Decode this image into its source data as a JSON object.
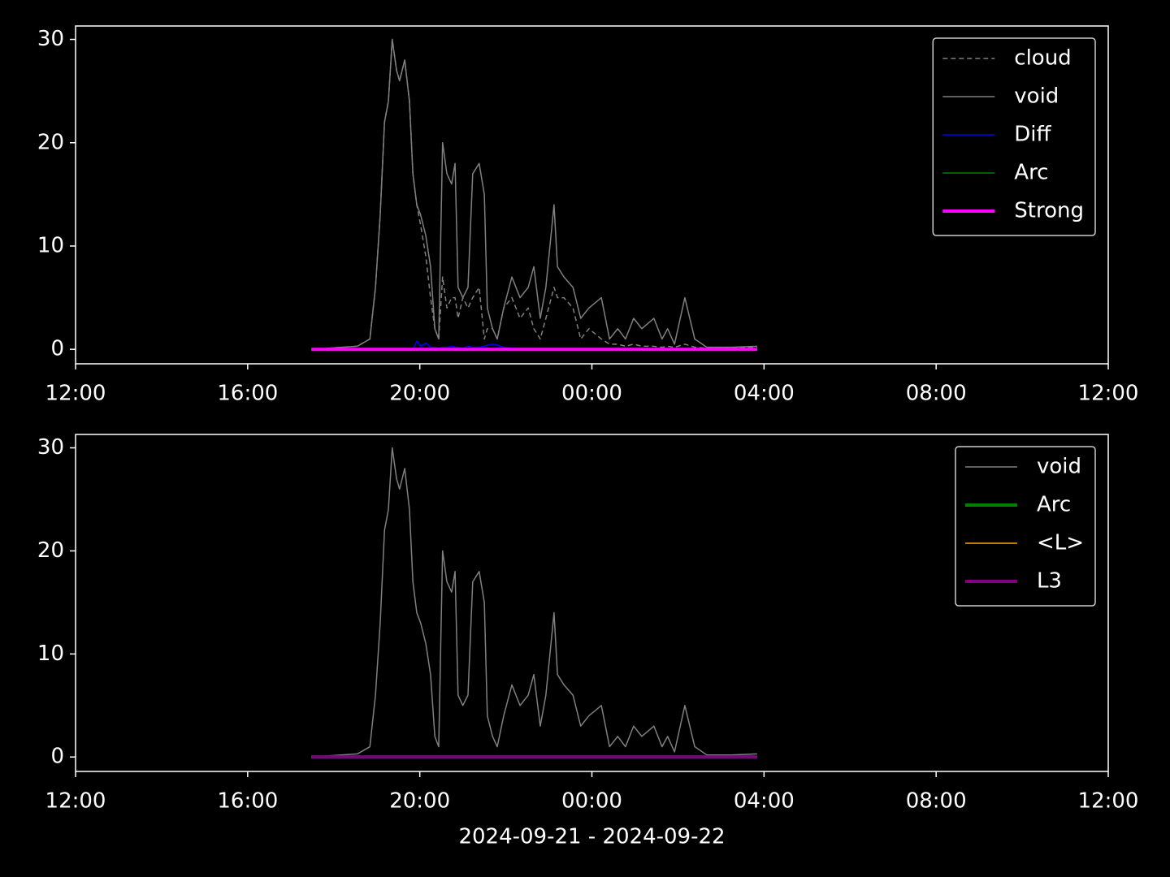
{
  "chart_data": [
    {
      "type": "line",
      "x": [
        17.48,
        18.55,
        18.84,
        18.97,
        19.08,
        19.18,
        19.27,
        19.36,
        19.46,
        19.53,
        19.65,
        19.76,
        19.84,
        19.93,
        20.02,
        20.14,
        20.25,
        20.35,
        20.44,
        20.53,
        20.63,
        20.74,
        20.82,
        20.89,
        21.0,
        21.12,
        21.23,
        21.38,
        21.5,
        21.57,
        21.69,
        21.8,
        21.95,
        22.14,
        22.33,
        22.52,
        22.65,
        22.8,
        22.93,
        23.12,
        23.2,
        23.35,
        23.56,
        23.74,
        23.93,
        24.22,
        24.41,
        24.6,
        24.78,
        24.97,
        25.16,
        25.44,
        25.63,
        25.76,
        25.92,
        26.16,
        26.39,
        26.67,
        27.24,
        27.84
      ],
      "series": [
        {
          "name": "cloud",
          "color": "#808080",
          "linestyle": "dashed",
          "linewidth": 1.5,
          "values": [
            0,
            0.3,
            1,
            6,
            13,
            22,
            24,
            30,
            27,
            26,
            28,
            24,
            17,
            14,
            12,
            9,
            5,
            2,
            1,
            7,
            4,
            5,
            5,
            3,
            5,
            4,
            5,
            6,
            1,
            2,
            2,
            1,
            4,
            5,
            3,
            4,
            2,
            1,
            3,
            6,
            5,
            5,
            4,
            1,
            2,
            1,
            0.5,
            0.5,
            0.3,
            0.5,
            0.3,
            0.3,
            0.2,
            0.3,
            0.2,
            0.5,
            0.2,
            0.1,
            0.1,
            0.2
          ]
        },
        {
          "name": "void",
          "color": "#808080",
          "linestyle": "solid",
          "linewidth": 1.5,
          "values": [
            0,
            0.3,
            1,
            6,
            13,
            22,
            24,
            30,
            27,
            26,
            28,
            24,
            17,
            14,
            13,
            11,
            8,
            2,
            1,
            20,
            17,
            16,
            18,
            6,
            5,
            6,
            17,
            18,
            15,
            4,
            2,
            1,
            4,
            7,
            5,
            6,
            8,
            3,
            6,
            14,
            8,
            7,
            6,
            3,
            4,
            5,
            1,
            2,
            1,
            3,
            2,
            3,
            1,
            2,
            0.5,
            5,
            1,
            0.2,
            0.2,
            0.3
          ]
        },
        {
          "name": "Diff",
          "color": "#0000ff",
          "linestyle": "solid",
          "linewidth": 1.5,
          "values": [
            0,
            0,
            0,
            0,
            0,
            0,
            0,
            0,
            0,
            0,
            0,
            0,
            0,
            0.8,
            0.3,
            0.6,
            0.2,
            0.2,
            0.1,
            0.2,
            0.2,
            0.3,
            0.2,
            0.2,
            0.1,
            0.3,
            0.2,
            0.2,
            0.3,
            0.4,
            0.5,
            0.4,
            0.2,
            0.1,
            0,
            0,
            0,
            0,
            0,
            0,
            0,
            0,
            0,
            0,
            0,
            0,
            0,
            0,
            0,
            0,
            0,
            0,
            0,
            0,
            0,
            0,
            0,
            0,
            0,
            0
          ]
        },
        {
          "name": "Arc",
          "color": "#008000",
          "linestyle": "solid",
          "linewidth": 1.5,
          "values": [
            0,
            0,
            0,
            0,
            0,
            0,
            0,
            0,
            0,
            0,
            0,
            0,
            0,
            0,
            0,
            0,
            0,
            0,
            0,
            0,
            0,
            0,
            0,
            0,
            0,
            0,
            0,
            0,
            0,
            0,
            0,
            0,
            0,
            0,
            0,
            0,
            0,
            0,
            0,
            0,
            0,
            0,
            0,
            0,
            0,
            0,
            0,
            0,
            0,
            0,
            0,
            0,
            0,
            0,
            0,
            0,
            0,
            0,
            0,
            0
          ]
        },
        {
          "name": "Strong",
          "color": "#ff00ff",
          "linestyle": "solid",
          "linewidth": 4,
          "values": [
            0,
            0,
            0,
            0,
            0,
            0,
            0,
            0,
            0,
            0,
            0,
            0,
            0,
            0,
            0,
            0,
            0,
            0,
            0,
            0,
            0,
            0,
            0,
            0,
            0,
            0,
            0,
            0,
            0,
            0,
            0,
            0,
            0,
            0,
            0,
            0,
            0,
            0,
            0,
            0,
            0,
            0,
            0,
            0,
            0,
            0,
            0,
            0,
            0,
            0,
            0,
            0,
            0,
            0,
            0,
            0,
            0,
            0,
            0,
            0
          ]
        }
      ],
      "xlim": [
        12,
        36
      ],
      "xticks": [
        {
          "value": 12,
          "label": "12:00"
        },
        {
          "value": 16,
          "label": "16:00"
        },
        {
          "value": 20,
          "label": "20:00"
        },
        {
          "value": 24,
          "label": "00:00"
        },
        {
          "value": 28,
          "label": "04:00"
        },
        {
          "value": 32,
          "label": "08:00"
        },
        {
          "value": 36,
          "label": "12:00"
        }
      ],
      "ylim": [
        -1.4,
        31.3
      ],
      "yticks": [
        0,
        10,
        20,
        30
      ],
      "legend": "upper right"
    },
    {
      "type": "line",
      "x": [
        17.48,
        18.55,
        18.84,
        18.97,
        19.08,
        19.18,
        19.27,
        19.36,
        19.46,
        19.53,
        19.65,
        19.76,
        19.84,
        19.93,
        20.02,
        20.14,
        20.25,
        20.35,
        20.44,
        20.53,
        20.63,
        20.74,
        20.82,
        20.89,
        21.0,
        21.12,
        21.23,
        21.38,
        21.5,
        21.57,
        21.69,
        21.8,
        21.95,
        22.14,
        22.33,
        22.52,
        22.65,
        22.8,
        22.93,
        23.12,
        23.2,
        23.35,
        23.56,
        23.74,
        23.93,
        24.22,
        24.41,
        24.6,
        24.78,
        24.97,
        25.16,
        25.44,
        25.63,
        25.76,
        25.92,
        26.16,
        26.39,
        26.67,
        27.24,
        27.84
      ],
      "series": [
        {
          "name": "void",
          "color": "#808080",
          "linestyle": "solid",
          "linewidth": 1.5,
          "values": [
            0,
            0.3,
            1,
            6,
            13,
            22,
            24,
            30,
            27,
            26,
            28,
            24,
            17,
            14,
            13,
            11,
            8,
            2,
            1,
            20,
            17,
            16,
            18,
            6,
            5,
            6,
            17,
            18,
            15,
            4,
            2,
            1,
            4,
            7,
            5,
            6,
            8,
            3,
            6,
            14,
            8,
            7,
            6,
            3,
            4,
            5,
            1,
            2,
            1,
            3,
            2,
            3,
            1,
            2,
            0.5,
            5,
            1,
            0.2,
            0.2,
            0.3
          ]
        },
        {
          "name": "Arc",
          "color": "#008000",
          "linestyle": "solid",
          "linewidth": 4,
          "values": [
            0,
            0,
            0,
            0,
            0,
            0,
            0,
            0,
            0,
            0,
            0,
            0,
            0,
            0,
            0,
            0,
            0,
            0,
            0,
            0,
            0,
            0,
            0,
            0,
            0,
            0,
            0,
            0,
            0,
            0,
            0,
            0,
            0,
            0,
            0,
            0,
            0,
            0,
            0,
            0,
            0,
            0,
            0,
            0,
            0,
            0,
            0,
            0,
            0,
            0,
            0,
            0,
            0,
            0,
            0,
            0,
            0,
            0,
            0,
            0
          ]
        },
        {
          "name": "<L>",
          "color": "#ffa500",
          "linestyle": "solid",
          "linewidth": 1.5,
          "values": [
            0,
            0,
            0,
            0,
            0,
            0,
            0,
            0,
            0,
            0,
            0,
            0,
            0,
            0,
            0,
            0,
            0,
            0,
            0,
            0,
            0,
            0,
            0,
            0,
            0,
            0,
            0,
            0,
            0,
            0,
            0,
            0,
            0,
            0,
            0,
            0,
            0,
            0,
            0,
            0,
            0,
            0,
            0,
            0,
            0,
            0,
            0,
            0,
            0,
            0,
            0,
            0,
            0,
            0,
            0,
            0,
            0,
            0,
            0,
            0
          ]
        },
        {
          "name": "L3",
          "color": "#800080",
          "linestyle": "solid",
          "linewidth": 4,
          "values": [
            0,
            0,
            0,
            0,
            0,
            0,
            0,
            0,
            0,
            0,
            0,
            0,
            0,
            0,
            0,
            0,
            0,
            0,
            0,
            0,
            0,
            0,
            0,
            0,
            0,
            0,
            0,
            0,
            0,
            0,
            0,
            0,
            0,
            0,
            0,
            0,
            0,
            0,
            0,
            0,
            0,
            0,
            0,
            0,
            0,
            0,
            0,
            0,
            0,
            0,
            0,
            0,
            0,
            0,
            0,
            0,
            0,
            0,
            0,
            0
          ]
        }
      ],
      "xlim": [
        12,
        36
      ],
      "xticks": [
        {
          "value": 12,
          "label": "12:00"
        },
        {
          "value": 16,
          "label": "16:00"
        },
        {
          "value": 20,
          "label": "20:00"
        },
        {
          "value": 24,
          "label": "00:00"
        },
        {
          "value": 28,
          "label": "04:00"
        },
        {
          "value": 32,
          "label": "08:00"
        },
        {
          "value": 36,
          "label": "12:00"
        }
      ],
      "ylim": [
        -1.4,
        31.3
      ],
      "yticks": [
        0,
        10,
        20,
        30
      ],
      "legend": "upper right",
      "xlabel": "2024-09-21 - 2024-09-22"
    }
  ]
}
